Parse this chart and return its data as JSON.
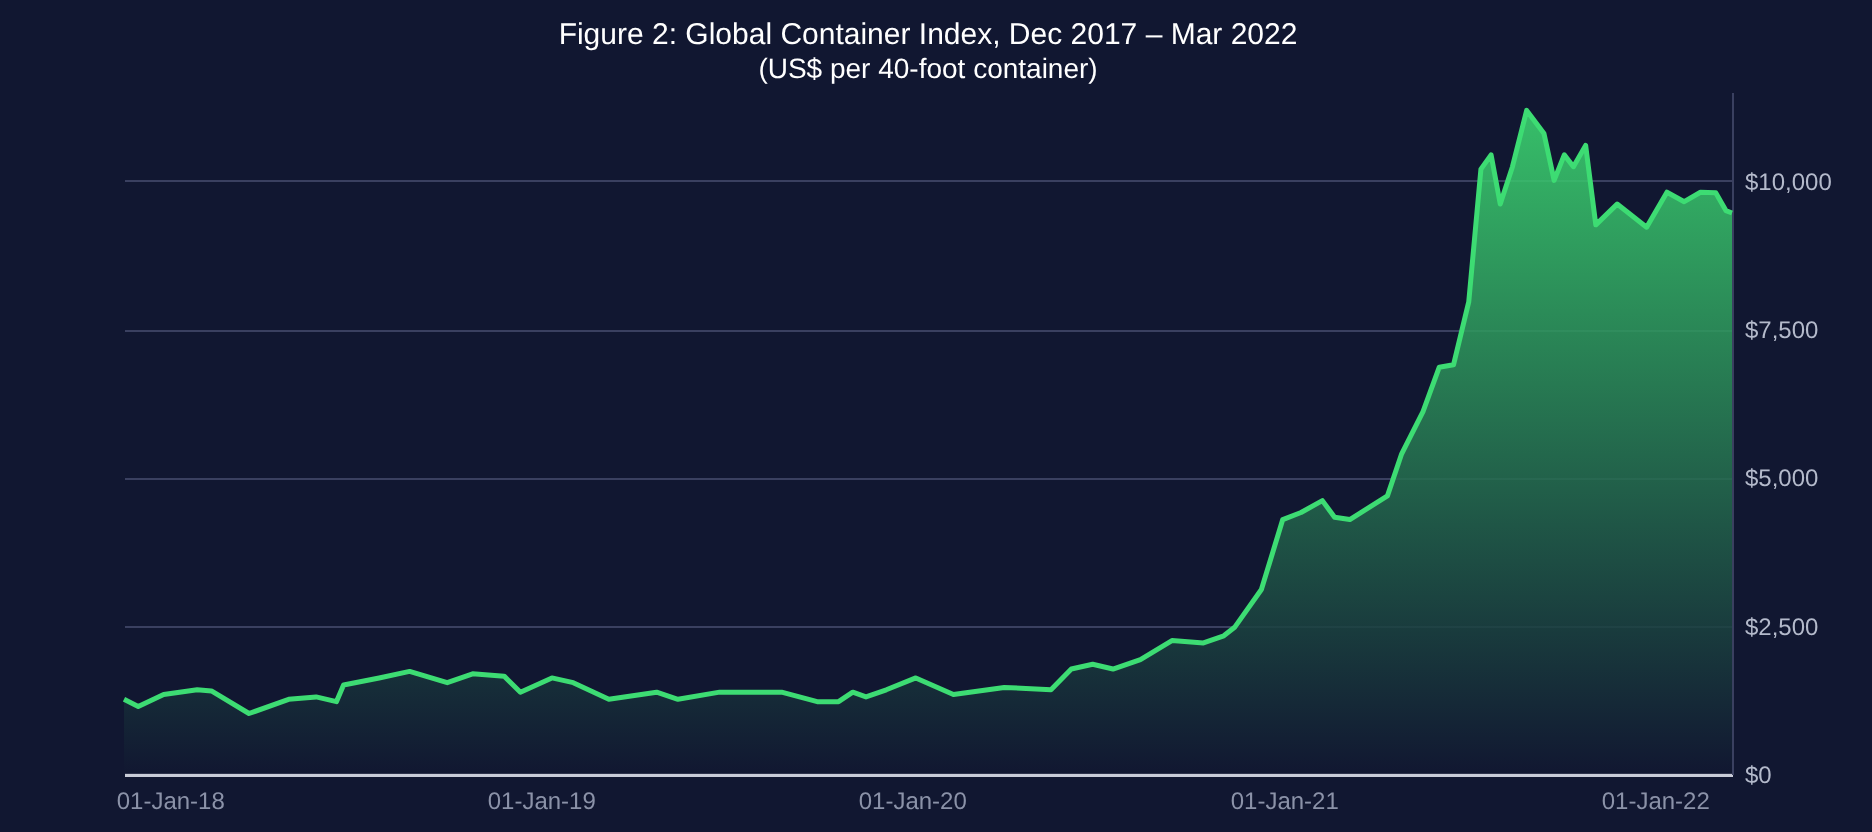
{
  "chart_data": {
    "type": "area",
    "title": "Figure 2: Global Container Index, Dec 2017 – Mar 2022",
    "subtitle": "(US$ per 40-foot container)",
    "x": [
      "2017-11-17",
      "2017-12-01",
      "2017-12-26",
      "2018-01-28",
      "2018-02-11",
      "2018-03-20",
      "2018-04-28",
      "2018-05-25",
      "2018-06-14",
      "2018-06-21",
      "2018-07-26",
      "2018-08-25",
      "2018-10-01",
      "2018-10-26",
      "2018-11-26",
      "2018-12-12",
      "2019-01-12",
      "2019-02-02",
      "2019-03-09",
      "2019-04-25",
      "2019-05-16",
      "2019-06-26",
      "2019-08-26",
      "2019-09-30",
      "2019-10-21",
      "2019-11-04",
      "2019-11-17",
      "2019-12-07",
      "2020-01-05",
      "2020-02-11",
      "2020-04-01",
      "2020-05-17",
      "2020-06-06",
      "2020-06-27",
      "2020-07-17",
      "2020-08-13",
      "2020-09-13",
      "2020-10-14",
      "2020-11-03",
      "2020-11-14",
      "2020-12-10",
      "2020-12-31",
      "2021-01-18",
      "2021-02-08",
      "2021-02-20",
      "2021-03-07",
      "2021-04-13",
      "2021-04-27",
      "2021-05-18",
      "2021-06-03",
      "2021-06-17",
      "2021-07-02",
      "2021-07-14",
      "2021-07-24",
      "2021-08-02",
      "2021-08-14",
      "2021-08-28",
      "2021-09-14",
      "2021-09-24",
      "2021-10-04",
      "2021-10-13",
      "2021-10-25",
      "2021-11-04",
      "2021-11-25",
      "2021-12-24",
      "2022-01-13",
      "2022-01-30",
      "2022-02-15",
      "2022-03-02",
      "2022-03-12",
      "2022-03-18"
    ],
    "series": [
      {
        "color": "#3ddc73",
        "values": [
          1260,
          1140,
          1340,
          1420,
          1400,
          1020,
          1260,
          1300,
          1220,
          1500,
          1620,
          1730,
          1540,
          1690,
          1650,
          1380,
          1620,
          1540,
          1260,
          1380,
          1260,
          1380,
          1380,
          1220,
          1220,
          1380,
          1300,
          1420,
          1620,
          1340,
          1460,
          1420,
          1770,
          1850,
          1770,
          1930,
          2250,
          2210,
          2330,
          2480,
          3110,
          4290,
          4410,
          4610,
          4330,
          4290,
          4690,
          5400,
          6110,
          6860,
          6900,
          7960,
          10200,
          10440,
          9610,
          10240,
          11190,
          10800,
          10010,
          10440,
          10240,
          10600,
          9260,
          9610,
          9220,
          9810,
          9650,
          9810,
          9800,
          9500,
          9460
        ]
      }
    ],
    "xlim": [
      "2017-11-17",
      "2022-03-18"
    ],
    "xticks": [
      {
        "value": "2018-01-01",
        "label": "01-Jan-18"
      },
      {
        "value": "2019-01-01",
        "label": "01-Jan-19"
      },
      {
        "value": "2020-01-01",
        "label": "01-Jan-20"
      },
      {
        "value": "2021-01-01",
        "label": "01-Jan-21"
      },
      {
        "value": "2022-01-01",
        "label": "01-Jan-22"
      }
    ],
    "ylim": [
      0,
      11500
    ],
    "yticks": [
      {
        "value": 0,
        "label": "$0"
      },
      {
        "value": 2500,
        "label": "$2,500"
      },
      {
        "value": 5000,
        "label": "$5,000"
      },
      {
        "value": 7500,
        "label": "$7,500"
      },
      {
        "value": 10000,
        "label": "$10,000"
      }
    ],
    "grid": "y"
  }
}
